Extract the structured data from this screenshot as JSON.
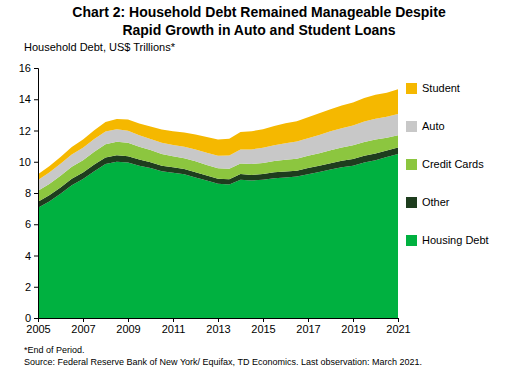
{
  "chart_data": {
    "type": "area",
    "stacked": true,
    "title": "Chart 2: Household Debt Remained Manageable Despite Rapid Growth in Auto and Student Loans",
    "ylabel": "Household Debt, US$ Trillions*",
    "notes": [
      "*End of Period.",
      "Source: Federal Reserve Bank of New York/ Equifax, TD Economics. Last observation: March 2021."
    ],
    "legend": "right",
    "xlim": [
      2005,
      2021
    ],
    "xticks": [
      2005,
      2007,
      2009,
      2011,
      2013,
      2015,
      2017,
      2019,
      2021
    ],
    "ylim": [
      0,
      16
    ],
    "yticks": [
      0,
      2,
      4,
      6,
      8,
      10,
      12,
      14,
      16
    ],
    "x": [
      2005,
      2005.5,
      2006,
      2006.5,
      2007,
      2007.5,
      2008,
      2008.5,
      2009,
      2009.5,
      2010,
      2010.5,
      2011,
      2011.5,
      2012,
      2012.5,
      2013,
      2013.5,
      2014,
      2014.5,
      2015,
      2015.5,
      2016,
      2016.5,
      2017,
      2017.5,
      2018,
      2018.5,
      2019,
      2019.5,
      2020,
      2020.5,
      2021
    ],
    "series": [
      {
        "name": "Housing Debt",
        "color": "#00b140",
        "values": [
          7.05,
          7.45,
          7.95,
          8.5,
          8.9,
          9.4,
          9.85,
          10.0,
          9.95,
          9.75,
          9.6,
          9.4,
          9.3,
          9.2,
          9.0,
          8.8,
          8.6,
          8.55,
          8.85,
          8.8,
          8.85,
          8.95,
          9.0,
          9.05,
          9.2,
          9.35,
          9.5,
          9.65,
          9.75,
          9.95,
          10.1,
          10.3,
          10.5
        ]
      },
      {
        "name": "Other",
        "color": "#1e3d1e",
        "values": [
          0.39,
          0.4,
          0.41,
          0.42,
          0.42,
          0.42,
          0.42,
          0.41,
          0.41,
          0.39,
          0.37,
          0.35,
          0.35,
          0.33,
          0.33,
          0.32,
          0.31,
          0.33,
          0.36,
          0.36,
          0.36,
          0.38,
          0.38,
          0.38,
          0.4,
          0.4,
          0.41,
          0.42,
          0.43,
          0.43,
          0.43,
          0.42,
          0.42
        ]
      },
      {
        "name": "Credit Cards",
        "color": "#8cc63f",
        "values": [
          0.7,
          0.72,
          0.74,
          0.76,
          0.78,
          0.82,
          0.85,
          0.87,
          0.86,
          0.82,
          0.78,
          0.75,
          0.71,
          0.69,
          0.7,
          0.68,
          0.67,
          0.67,
          0.68,
          0.7,
          0.71,
          0.72,
          0.75,
          0.76,
          0.78,
          0.8,
          0.83,
          0.84,
          0.87,
          0.88,
          0.89,
          0.82,
          0.77
        ]
      },
      {
        "name": "Auto",
        "color": "#c8c8c8",
        "values": [
          0.7,
          0.74,
          0.77,
          0.79,
          0.8,
          0.81,
          0.81,
          0.8,
          0.77,
          0.73,
          0.7,
          0.71,
          0.72,
          0.74,
          0.75,
          0.78,
          0.81,
          0.85,
          0.89,
          0.93,
          0.97,
          1.01,
          1.06,
          1.1,
          1.13,
          1.17,
          1.21,
          1.24,
          1.27,
          1.31,
          1.33,
          1.34,
          1.37
        ]
      },
      {
        "name": "Student",
        "color": "#f5b800",
        "values": [
          0.36,
          0.4,
          0.44,
          0.48,
          0.52,
          0.56,
          0.61,
          0.66,
          0.71,
          0.76,
          0.8,
          0.85,
          0.88,
          0.91,
          0.96,
          1.0,
          1.03,
          1.08,
          1.12,
          1.16,
          1.19,
          1.23,
          1.28,
          1.31,
          1.34,
          1.38,
          1.41,
          1.45,
          1.48,
          1.51,
          1.54,
          1.54,
          1.58
        ]
      }
    ]
  }
}
